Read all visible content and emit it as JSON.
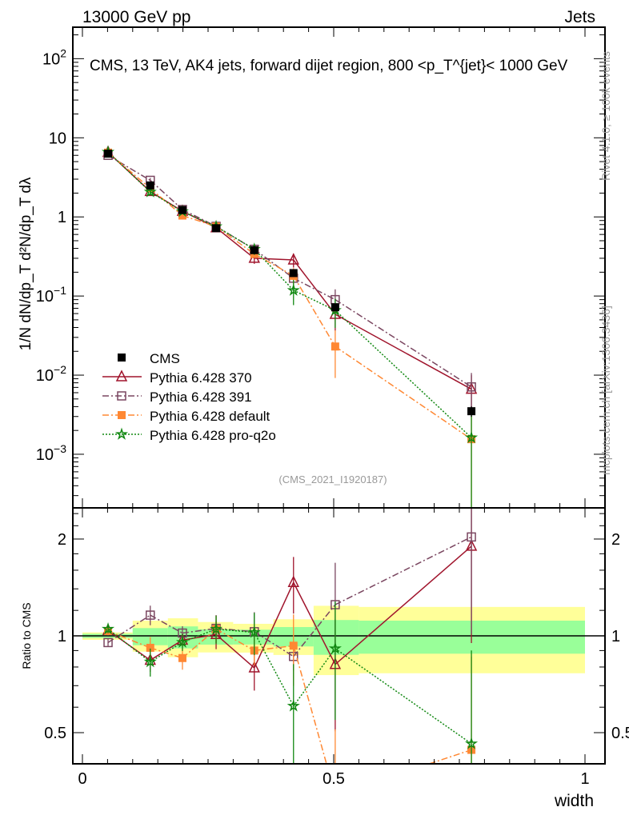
{
  "header": {
    "left": "13000 GeV pp",
    "right": "Jets"
  },
  "side_labels": {
    "rivet": "Rivet 4.1.0, ≥ 100k events",
    "mcplots": "mcplots.cern.ch [arXiv:1306.3436]"
  },
  "chart_data": {
    "type": "line",
    "title": "CMS, 13 TeV, AK4 jets, forward dijet region, 800 <p_T^{jet}< 1000 GeV",
    "watermark": "(CMS_2021_I1920187)",
    "xlabel": "width",
    "ylabel": "1/N dN/dp_T d²N/dp_T dλ",
    "ratio_ylabel": "Ratio to CMS",
    "xlim": [
      0,
      1
    ],
    "ylim": [
      0.00021,
      250
    ],
    "yscale": "log",
    "ratio_ylim": [
      0.4,
      2.5
    ],
    "x_ticks": [
      "0",
      "0.5",
      "1"
    ],
    "x_tick_values": [
      0,
      0.5,
      1
    ],
    "y_ticks": [
      {
        "v": 0.001,
        "base": "10",
        "exp": "−3"
      },
      {
        "v": 0.01,
        "base": "10",
        "exp": "−2"
      },
      {
        "v": 0.1,
        "base": "10",
        "exp": "−1"
      },
      {
        "v": 1,
        "base": "1",
        "exp": ""
      },
      {
        "v": 10,
        "base": "10",
        "exp": ""
      },
      {
        "v": 100,
        "base": "10",
        "exp": "2"
      }
    ],
    "ratio_ticks": [
      {
        "v": 0.5,
        "label": "0.5"
      },
      {
        "v": 1,
        "label": "1"
      },
      {
        "v": 2,
        "label": "2"
      }
    ],
    "bin_edges": [
      0,
      0.1,
      0.17,
      0.23,
      0.3,
      0.38,
      0.46,
      0.55,
      1.0
    ],
    "x": [
      0.051,
      0.135,
      0.199,
      0.266,
      0.342,
      0.42,
      0.503,
      0.774
    ],
    "band_yellow": [
      [
        0.972,
        1.025
      ],
      [
        0.893,
        1.115
      ],
      [
        0.858,
        1.134
      ],
      [
        0.888,
        1.104
      ],
      [
        0.887,
        1.09
      ],
      [
        0.872,
        1.126
      ],
      [
        0.755,
        1.24
      ],
      [
        0.765,
        1.23
      ]
    ],
    "band_green": [
      [
        0.985,
        1.015
      ],
      [
        0.935,
        1.057
      ],
      [
        0.914,
        1.07
      ],
      [
        0.939,
        1.048
      ],
      [
        0.94,
        1.045
      ],
      [
        0.927,
        1.065
      ],
      [
        0.873,
        1.12
      ],
      [
        0.88,
        1.115
      ]
    ],
    "series": [
      {
        "name": "CMS",
        "color": "#000000",
        "marker": "square-filled",
        "dash": "none",
        "values": [
          6.3,
          2.5,
          1.22,
          0.72,
          0.38,
          0.195,
          0.072,
          0.0035
        ],
        "ratio": [
          1,
          1,
          1,
          1,
          1,
          1,
          1,
          1
        ],
        "rel_err": [
          0.02,
          0.03,
          0.03,
          0.03,
          0.04,
          0.06,
          0.1,
          0.15
        ]
      },
      {
        "name": "Pythia 6.428 370",
        "color": "#a0142c",
        "marker": "triangle-open",
        "dash": "",
        "values": [
          6.55,
          2.1,
          1.18,
          0.73,
          0.3,
          0.286,
          0.0587,
          0.00665
        ],
        "ratio": [
          1.04,
          0.84,
          0.97,
          1.01,
          0.795,
          1.466,
          0.815,
          1.9
        ],
        "rel_err": [
          0.03,
          0.08,
          0.05,
          0.1,
          0.15,
          0.2,
          0.38,
          0.5
        ]
      },
      {
        "name": "Pythia 6.428 391",
        "color": "#7a4660",
        "marker": "square-open",
        "dash": "8,3,2,3",
        "values": [
          6.0,
          2.9,
          1.24,
          0.76,
          0.39,
          0.168,
          0.09,
          0.0071
        ],
        "ratio": [
          0.953,
          1.16,
          1.02,
          1.055,
          1.03,
          0.863,
          1.25,
          2.03
        ],
        "rel_err": [
          0.03,
          0.07,
          0.05,
          0.1,
          0.15,
          0.1,
          0.35,
          0.5
        ]
      },
      {
        "name": "Pythia 6.428 default",
        "color": "#ff8833",
        "marker": "square-filled",
        "dash": "8,3,2,3",
        "values": [
          6.5,
          2.3,
          1.04,
          0.756,
          0.34,
          0.18,
          0.023,
          0.00155
        ],
        "ratio": [
          1.035,
          0.918,
          0.853,
          1.05,
          0.9,
          0.932,
          0.32,
          0.442
        ],
        "rel_err": [
          0.03,
          0.08,
          0.08,
          0.1,
          0.1,
          0.25,
          0.6,
          0.95
        ]
      },
      {
        "name": "Pythia 6.428 pro-q2o",
        "color": "#118811",
        "marker": "star-open",
        "dash": "2,2",
        "values": [
          6.6,
          2.07,
          1.17,
          0.756,
          0.39,
          0.118,
          0.066,
          0.00162
        ],
        "ratio": [
          1.05,
          0.83,
          0.955,
          1.05,
          1.025,
          0.605,
          0.913,
          0.462
        ],
        "rel_err": [
          0.03,
          0.1,
          0.06,
          0.1,
          0.15,
          0.35,
          0.4,
          0.95
        ]
      }
    ]
  }
}
